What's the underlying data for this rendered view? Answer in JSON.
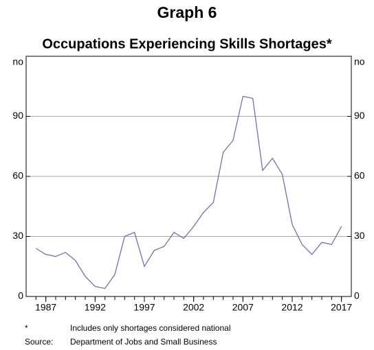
{
  "chart_data": {
    "type": "line",
    "title": "Graph 6",
    "subtitle": "Occupations Experiencing Skills Shortages*",
    "y_unit": "no",
    "x": [
      1986,
      1987,
      1988,
      1989,
      1990,
      1991,
      1992,
      1993,
      1994,
      1995,
      1996,
      1997,
      1998,
      1999,
      2000,
      2001,
      2002,
      2003,
      2004,
      2005,
      2006,
      2007,
      2008,
      2009,
      2010,
      2011,
      2012,
      2013,
      2014,
      2015,
      2016,
      2017
    ],
    "series": [
      {
        "color": "#7d6aa8",
        "values": [
          24,
          21,
          20,
          22,
          18,
          10,
          5,
          4,
          11,
          30,
          32,
          15,
          23,
          25,
          32,
          29,
          35,
          42,
          47,
          72,
          78,
          100,
          99,
          63,
          69,
          61,
          36,
          26,
          21,
          27,
          26,
          35
        ]
      }
    ],
    "xlim": [
      1985,
      2018
    ],
    "xticks": [
      1987,
      1992,
      1997,
      2002,
      2007,
      2012,
      2017
    ],
    "ylim": [
      0,
      120
    ],
    "yticks": [
      0,
      30,
      60,
      90
    ],
    "grid": true,
    "notes": [
      {
        "marker": "*",
        "text": "Includes only shortages considered national"
      },
      {
        "marker": "Source:",
        "text": "Department of Jobs and Small Business"
      }
    ]
  }
}
